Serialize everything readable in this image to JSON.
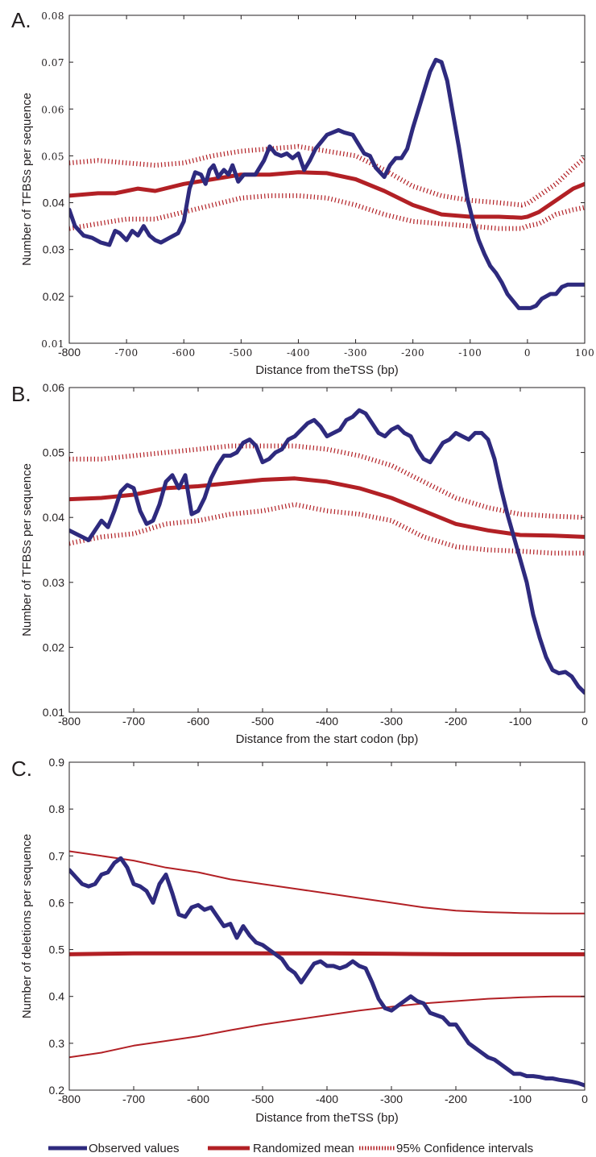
{
  "colors": {
    "observed": "#2e2a7e",
    "randomized": "#b22025",
    "axis": "#231f20"
  },
  "legend": {
    "observed": "Observed values",
    "randomized": "Randomized mean",
    "ci": "95% Confidence intervals"
  },
  "chart_data": [
    {
      "panel_label": "A.",
      "type": "line",
      "xlabel": "Distance from theTSS (bp)",
      "ylabel": "Number of TFBSs per sequence",
      "xlim": [
        -800,
        100
      ],
      "ylim": [
        0.01,
        0.08
      ],
      "xticks": [
        "-800",
        "-700",
        "-600",
        "-500",
        "-400",
        "-300",
        "-200",
        "-100",
        "0",
        "100"
      ],
      "yticks": [
        "0.01",
        "0.02",
        "0.03",
        "0.04",
        "0.05",
        "0.06",
        "0.07",
        "0.08"
      ],
      "series": [
        {
          "key": "observed",
          "x": [
            -800,
            -790,
            -775,
            -760,
            -745,
            -730,
            -720,
            -712,
            -700,
            -690,
            -680,
            -670,
            -660,
            -650,
            -640,
            -625,
            -610,
            -600,
            -590,
            -580,
            -570,
            -562,
            -555,
            -548,
            -540,
            -530,
            -522,
            -515,
            -505,
            -495,
            -485,
            -475,
            -460,
            -450,
            -440,
            -430,
            -420,
            -410,
            -400,
            -390,
            -380,
            -370,
            -360,
            -350,
            -340,
            -330,
            -320,
            -305,
            -295,
            -285,
            -275,
            -265,
            -250,
            -240,
            -230,
            -220,
            -210,
            -200,
            -190,
            -180,
            -170,
            -160,
            -150,
            -140,
            -130,
            -120,
            -112,
            -105,
            -95,
            -85,
            -75,
            -65,
            -55,
            -45,
            -35,
            -25,
            -15,
            -5,
            5,
            15,
            25,
            40,
            50,
            60,
            70,
            80,
            90,
            100
          ],
          "y": [
            0.0385,
            0.035,
            0.033,
            0.0325,
            0.0315,
            0.031,
            0.034,
            0.0335,
            0.032,
            0.034,
            0.033,
            0.035,
            0.033,
            0.032,
            0.0315,
            0.0325,
            0.0335,
            0.036,
            0.043,
            0.0465,
            0.046,
            0.044,
            0.047,
            0.048,
            0.0455,
            0.047,
            0.046,
            0.048,
            0.0445,
            0.046,
            0.046,
            0.046,
            0.049,
            0.052,
            0.0505,
            0.05,
            0.0505,
            0.0495,
            0.0505,
            0.047,
            0.049,
            0.0515,
            0.053,
            0.0545,
            0.055,
            0.0555,
            0.055,
            0.0545,
            0.0525,
            0.0505,
            0.05,
            0.0475,
            0.0455,
            0.048,
            0.0495,
            0.0495,
            0.0515,
            0.056,
            0.06,
            0.064,
            0.068,
            0.0705,
            0.07,
            0.066,
            0.059,
            0.052,
            0.046,
            0.041,
            0.036,
            0.032,
            0.029,
            0.0265,
            0.025,
            0.023,
            0.0205,
            0.019,
            0.0175,
            0.0175,
            0.0175,
            0.018,
            0.0195,
            0.0205,
            0.0205,
            0.022,
            0.0225,
            0.0225,
            0.0225,
            0.0225
          ]
        },
        {
          "key": "randomized",
          "x": [
            -800,
            -750,
            -720,
            -700,
            -680,
            -650,
            -600,
            -550,
            -500,
            -450,
            -400,
            -350,
            -300,
            -250,
            -200,
            -150,
            -100,
            -50,
            -10,
            0,
            20,
            50,
            80,
            100
          ],
          "y": [
            0.0415,
            0.042,
            0.042,
            0.0425,
            0.043,
            0.0425,
            0.044,
            0.045,
            0.046,
            0.046,
            0.0465,
            0.0463,
            0.045,
            0.0425,
            0.0395,
            0.0375,
            0.037,
            0.037,
            0.0368,
            0.037,
            0.038,
            0.0405,
            0.043,
            0.044
          ]
        },
        {
          "key": "ci_upper",
          "x": [
            -800,
            -750,
            -700,
            -650,
            -600,
            -550,
            -500,
            -450,
            -400,
            -350,
            -300,
            -250,
            -200,
            -150,
            -100,
            -50,
            -10,
            0,
            20,
            50,
            80,
            100
          ],
          "y": [
            0.0485,
            0.049,
            0.0485,
            0.048,
            0.0485,
            0.05,
            0.051,
            0.0515,
            0.052,
            0.051,
            0.05,
            0.047,
            0.0435,
            0.0415,
            0.0405,
            0.04,
            0.0395,
            0.0398,
            0.0415,
            0.044,
            0.0475,
            0.0495
          ]
        },
        {
          "key": "ci_lower",
          "x": [
            -800,
            -750,
            -700,
            -650,
            -600,
            -550,
            -500,
            -450,
            -400,
            -350,
            -300,
            -250,
            -200,
            -150,
            -100,
            -50,
            -10,
            0,
            20,
            50,
            80,
            100
          ],
          "y": [
            0.0345,
            0.0355,
            0.0365,
            0.0365,
            0.038,
            0.0395,
            0.041,
            0.0415,
            0.0415,
            0.041,
            0.0395,
            0.0375,
            0.036,
            0.0355,
            0.035,
            0.0345,
            0.0345,
            0.035,
            0.0355,
            0.0375,
            0.0385,
            0.039
          ]
        }
      ]
    },
    {
      "panel_label": "B.",
      "type": "line",
      "xlabel": "Distance from the start codon (bp)",
      "ylabel": "Number of TFBSs per sequence",
      "xlim": [
        -800,
        0
      ],
      "ylim": [
        0.01,
        0.06
      ],
      "xticks": [
        "-800",
        "-700",
        "-600",
        "-500",
        "-400",
        "-300",
        "-200",
        "-100",
        "0"
      ],
      "yticks": [
        "0.01",
        "0.02",
        "0.03",
        "0.04",
        "0.05",
        "0.06"
      ],
      "series": [
        {
          "key": "observed",
          "x": [
            -800,
            -790,
            -780,
            -770,
            -760,
            -750,
            -740,
            -730,
            -720,
            -710,
            -700,
            -690,
            -680,
            -670,
            -660,
            -650,
            -640,
            -630,
            -620,
            -610,
            -600,
            -590,
            -580,
            -570,
            -560,
            -550,
            -540,
            -530,
            -520,
            -510,
            -500,
            -490,
            -480,
            -470,
            -460,
            -450,
            -440,
            -430,
            -420,
            -410,
            -400,
            -390,
            -380,
            -370,
            -360,
            -350,
            -340,
            -330,
            -320,
            -310,
            -300,
            -290,
            -280,
            -270,
            -260,
            -250,
            -240,
            -230,
            -220,
            -210,
            -200,
            -190,
            -180,
            -170,
            -160,
            -150,
            -140,
            -130,
            -120,
            -110,
            -100,
            -90,
            -80,
            -70,
            -60,
            -50,
            -40,
            -30,
            -20,
            -10,
            0
          ],
          "y": [
            0.038,
            0.0375,
            0.037,
            0.0365,
            0.038,
            0.0395,
            0.0385,
            0.041,
            0.044,
            0.045,
            0.0445,
            0.041,
            0.039,
            0.0395,
            0.042,
            0.0455,
            0.0465,
            0.0445,
            0.0465,
            0.0405,
            0.041,
            0.043,
            0.046,
            0.048,
            0.0495,
            0.0495,
            0.05,
            0.0515,
            0.052,
            0.051,
            0.0485,
            0.049,
            0.05,
            0.0505,
            0.052,
            0.0525,
            0.0535,
            0.0545,
            0.055,
            0.054,
            0.0525,
            0.053,
            0.0535,
            0.055,
            0.0555,
            0.0565,
            0.056,
            0.0545,
            0.053,
            0.0525,
            0.0535,
            0.054,
            0.053,
            0.0525,
            0.0505,
            0.049,
            0.0485,
            0.05,
            0.0515,
            0.052,
            0.053,
            0.0525,
            0.052,
            0.053,
            0.053,
            0.052,
            0.049,
            0.0445,
            0.0405,
            0.037,
            0.0335,
            0.03,
            0.025,
            0.0215,
            0.0185,
            0.0165,
            0.016,
            0.0162,
            0.0155,
            0.014,
            0.013
          ]
        },
        {
          "key": "randomized",
          "x": [
            -800,
            -750,
            -700,
            -650,
            -600,
            -550,
            -500,
            -450,
            -400,
            -350,
            -300,
            -250,
            -200,
            -150,
            -100,
            -50,
            0
          ],
          "y": [
            0.0428,
            0.043,
            0.0435,
            0.0445,
            0.0448,
            0.0453,
            0.0458,
            0.046,
            0.0455,
            0.0445,
            0.043,
            0.041,
            0.039,
            0.038,
            0.0373,
            0.0372,
            0.037
          ]
        },
        {
          "key": "ci_upper",
          "x": [
            -800,
            -750,
            -700,
            -650,
            -600,
            -550,
            -500,
            -450,
            -400,
            -350,
            -300,
            -250,
            -200,
            -150,
            -100,
            -50,
            0
          ],
          "y": [
            0.049,
            0.049,
            0.0495,
            0.05,
            0.0505,
            0.051,
            0.051,
            0.051,
            0.0505,
            0.0495,
            0.048,
            0.0455,
            0.043,
            0.0415,
            0.0405,
            0.0402,
            0.04
          ]
        },
        {
          "key": "ci_lower",
          "x": [
            -800,
            -750,
            -700,
            -650,
            -600,
            -550,
            -500,
            -450,
            -400,
            -350,
            -300,
            -250,
            -200,
            -150,
            -100,
            -50,
            0
          ],
          "y": [
            0.036,
            0.037,
            0.0375,
            0.039,
            0.0395,
            0.0405,
            0.041,
            0.042,
            0.041,
            0.0405,
            0.0395,
            0.037,
            0.0355,
            0.035,
            0.0348,
            0.0345,
            0.0345
          ]
        }
      ]
    },
    {
      "panel_label": "C.",
      "type": "line",
      "xlabel": "Distance from theTSS (bp)",
      "ylabel": "Number of deletions per sequence",
      "xlim": [
        -800,
        0
      ],
      "ylim": [
        0.2,
        0.9
      ],
      "xticks": [
        "-800",
        "-700",
        "-600",
        "-500",
        "-400",
        "-300",
        "-200",
        "-100",
        "0"
      ],
      "yticks": [
        "0.2",
        "0.3",
        "0.4",
        "0.5",
        "0.6",
        "0.7",
        "0.8",
        "0.9"
      ],
      "series": [
        {
          "key": "observed",
          "x": [
            -800,
            -790,
            -780,
            -770,
            -760,
            -750,
            -740,
            -730,
            -720,
            -710,
            -700,
            -690,
            -680,
            -670,
            -660,
            -650,
            -640,
            -630,
            -620,
            -610,
            -600,
            -590,
            -580,
            -570,
            -560,
            -550,
            -540,
            -530,
            -520,
            -510,
            -500,
            -490,
            -480,
            -470,
            -460,
            -450,
            -440,
            -430,
            -420,
            -410,
            -400,
            -390,
            -380,
            -370,
            -360,
            -350,
            -340,
            -330,
            -320,
            -310,
            -300,
            -290,
            -280,
            -270,
            -260,
            -250,
            -240,
            -230,
            -220,
            -210,
            -200,
            -190,
            -180,
            -170,
            -160,
            -150,
            -140,
            -130,
            -120,
            -110,
            -100,
            -90,
            -80,
            -70,
            -60,
            -50,
            -40,
            -30,
            -20,
            -10,
            0
          ],
          "y": [
            0.67,
            0.655,
            0.64,
            0.635,
            0.64,
            0.66,
            0.665,
            0.685,
            0.695,
            0.675,
            0.64,
            0.635,
            0.625,
            0.6,
            0.64,
            0.66,
            0.62,
            0.575,
            0.57,
            0.59,
            0.595,
            0.585,
            0.59,
            0.57,
            0.55,
            0.555,
            0.525,
            0.55,
            0.53,
            0.515,
            0.51,
            0.5,
            0.49,
            0.48,
            0.46,
            0.45,
            0.43,
            0.45,
            0.47,
            0.475,
            0.465,
            0.465,
            0.46,
            0.465,
            0.475,
            0.465,
            0.46,
            0.43,
            0.395,
            0.375,
            0.37,
            0.38,
            0.39,
            0.4,
            0.39,
            0.385,
            0.365,
            0.36,
            0.355,
            0.34,
            0.34,
            0.32,
            0.3,
            0.29,
            0.28,
            0.27,
            0.265,
            0.255,
            0.245,
            0.235,
            0.235,
            0.23,
            0.23,
            0.228,
            0.225,
            0.225,
            0.222,
            0.22,
            0.218,
            0.215,
            0.21
          ]
        },
        {
          "key": "randomized",
          "x": [
            -800,
            -700,
            -600,
            -500,
            -400,
            -300,
            -200,
            -100,
            0
          ],
          "y": [
            0.49,
            0.492,
            0.492,
            0.492,
            0.492,
            0.491,
            0.49,
            0.49,
            0.49
          ]
        },
        {
          "key": "ci_upper",
          "x": [
            -800,
            -750,
            -700,
            -650,
            -600,
            -550,
            -500,
            -450,
            -400,
            -350,
            -300,
            -250,
            -200,
            -150,
            -100,
            -50,
            0
          ],
          "y": [
            0.71,
            0.7,
            0.69,
            0.675,
            0.665,
            0.65,
            0.64,
            0.63,
            0.62,
            0.61,
            0.6,
            0.59,
            0.583,
            0.58,
            0.578,
            0.577,
            0.577
          ]
        },
        {
          "key": "ci_lower",
          "x": [
            -800,
            -750,
            -700,
            -650,
            -600,
            -550,
            -500,
            -450,
            -400,
            -350,
            -300,
            -250,
            -200,
            -150,
            -100,
            -50,
            0
          ],
          "y": [
            0.27,
            0.28,
            0.295,
            0.305,
            0.315,
            0.328,
            0.34,
            0.35,
            0.36,
            0.37,
            0.378,
            0.385,
            0.39,
            0.395,
            0.398,
            0.4,
            0.4
          ]
        }
      ]
    }
  ]
}
